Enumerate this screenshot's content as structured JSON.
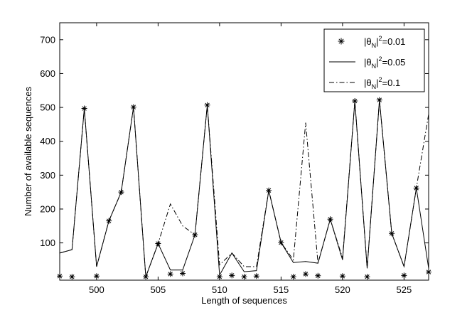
{
  "chart_data": {
    "type": "line",
    "xlabel": "Length of sequences",
    "ylabel": "Number of available sequences",
    "xlim": [
      497,
      527
    ],
    "ylim": [
      -10,
      750
    ],
    "xticks": [
      500,
      505,
      510,
      515,
      520,
      525
    ],
    "yticks": [
      100,
      200,
      300,
      400,
      500,
      600,
      700
    ],
    "legend_position": "top-right",
    "series": [
      {
        "name": "|θ_N|^2=0.01",
        "legend_parts": {
          "base": "|θ",
          "sub": "N",
          "mid": "|",
          "sup": "2",
          "tail": "=0.01"
        },
        "style": "star-markers",
        "x": [
          497,
          498,
          499,
          500,
          501,
          502,
          503,
          504,
          505,
          506,
          507,
          508,
          509,
          510,
          511,
          512,
          513,
          514,
          515,
          516,
          517,
          518,
          519,
          520,
          521,
          522,
          523,
          524,
          525,
          526,
          527
        ],
        "y": [
          2,
          0,
          497,
          2,
          165,
          250,
          501,
          0,
          98,
          8,
          10,
          124,
          507,
          0,
          4,
          0,
          2,
          255,
          101,
          0,
          8,
          3,
          170,
          2,
          519,
          0,
          522,
          128,
          4,
          262,
          14
        ]
      },
      {
        "name": "|θ_N|^2=0.05",
        "legend_parts": {
          "base": "|θ",
          "sub": "N",
          "mid": "|",
          "sup": "2",
          "tail": "=0.05"
        },
        "style": "solid",
        "x": [
          497,
          498,
          499,
          500,
          501,
          502,
          503,
          504,
          505,
          506,
          507,
          508,
          509,
          510,
          511,
          512,
          513,
          514,
          515,
          516,
          517,
          518,
          519,
          520,
          521,
          522,
          523,
          524,
          525,
          526,
          527
        ],
        "y": [
          70,
          80,
          497,
          30,
          165,
          250,
          501,
          0,
          98,
          20,
          20,
          124,
          507,
          5,
          70,
          15,
          18,
          255,
          101,
          42,
          45,
          40,
          170,
          50,
          519,
          25,
          522,
          128,
          30,
          262,
          25
        ]
      },
      {
        "name": "|θ_N|^2=0.1",
        "legend_parts": {
          "base": "|θ",
          "sub": "N",
          "mid": "|",
          "sup": "2",
          "tail": "=0.1"
        },
        "style": "dash-dot",
        "x": [
          497,
          498,
          499,
          500,
          501,
          502,
          503,
          504,
          505,
          506,
          507,
          508,
          509,
          510,
          511,
          512,
          513,
          514,
          515,
          516,
          517,
          518,
          519,
          520,
          521,
          522,
          523,
          524,
          525,
          526,
          527
        ],
        "y": [
          70,
          80,
          497,
          30,
          165,
          250,
          501,
          0,
          98,
          215,
          150,
          124,
          507,
          35,
          70,
          30,
          30,
          255,
          101,
          50,
          455,
          40,
          170,
          55,
          519,
          25,
          522,
          128,
          30,
          262,
          480
        ]
      }
    ]
  }
}
